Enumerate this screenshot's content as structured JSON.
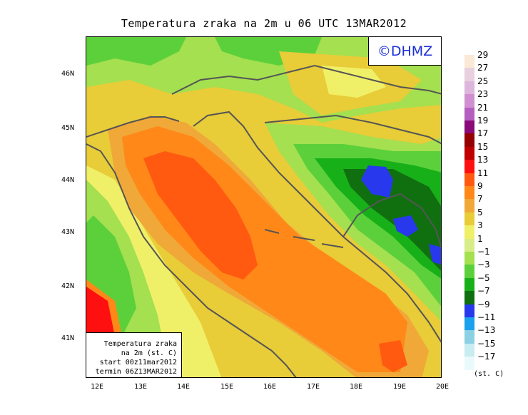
{
  "title": "Temperatura zraka na 2m u 06 UTC 13MAR2012",
  "logo": "©DHMZ",
  "info": {
    "line1": "Temperatura zraka",
    "line2": "na 2m (st. C)",
    "line3": "start 00z11mar2012",
    "line4": "termin 06Z13MAR2012"
  },
  "axes": {
    "lat_labels": [
      "46N",
      "45N",
      "44N",
      "43N",
      "42N",
      "41N"
    ],
    "lon_labels": [
      "12E",
      "13E",
      "14E",
      "15E",
      "16E",
      "17E",
      "18E",
      "19E",
      "20E"
    ],
    "lon_range": [
      11.8,
      20.0
    ],
    "lat_range": [
      40.25,
      46.75
    ]
  },
  "legend": {
    "unit": "(st. C)",
    "labels": [
      "29",
      "27",
      "25",
      "23",
      "21",
      "19",
      "17",
      "15",
      "13",
      "11",
      "9",
      "7",
      "5",
      "3",
      "1",
      "−1",
      "−3",
      "−5",
      "−7",
      "−9",
      "−11",
      "−13",
      "−15",
      "−17"
    ],
    "colors": [
      "#fbe9d8",
      "#e8d0de",
      "#dcb6dc",
      "#cf8fd0",
      "#b45fc0",
      "#8a0a7a",
      "#960000",
      "#c00000",
      "#ff1010",
      "#ff5a10",
      "#ff8818",
      "#f0a838",
      "#e8cc38",
      "#f0f068",
      "#d8ec88",
      "#a4e050",
      "#5cd03a",
      "#18b018",
      "#107010",
      "#2838ec",
      "#1aa0ec",
      "#8cd0e4",
      "#c8ecf0",
      "#eafafc"
    ]
  },
  "map_fields": {
    "land_colder_than_coast": true,
    "min_temp_region": "Bosnia interior",
    "max_temp_region": "Adriatic Sea"
  }
}
